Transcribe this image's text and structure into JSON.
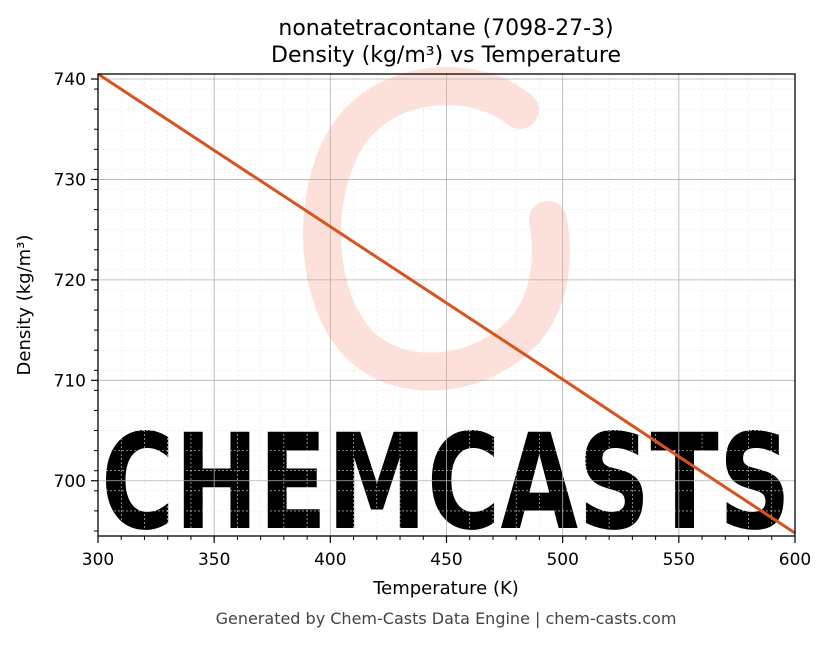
{
  "chart_data": {
    "type": "line",
    "title": "nonatetracontane (7098-27-3)",
    "subtitle": "Density (kg/m³) vs Temperature",
    "xlabel": "Temperature (K)",
    "ylabel": "Density (kg/m³)",
    "xlim": [
      300,
      600
    ],
    "ylim": [
      694.5,
      740.5
    ],
    "x_ticks": [
      300,
      350,
      400,
      450,
      500,
      550,
      600
    ],
    "y_ticks": [
      700,
      710,
      720,
      730,
      740
    ],
    "grid": true,
    "minor_grid": true,
    "series": [
      {
        "color": "#d9531e",
        "x": [
          300,
          350,
          400,
          450,
          500,
          550,
          600
        ],
        "y": [
          740.5,
          732.9,
          725.3,
          717.7,
          710.1,
          702.4,
          694.8
        ]
      }
    ]
  },
  "watermark": {
    "text": "CHEMCASTS",
    "color": "#fde0da"
  },
  "footer": "Generated by Chem-Casts Data Engine | chem-casts.com"
}
